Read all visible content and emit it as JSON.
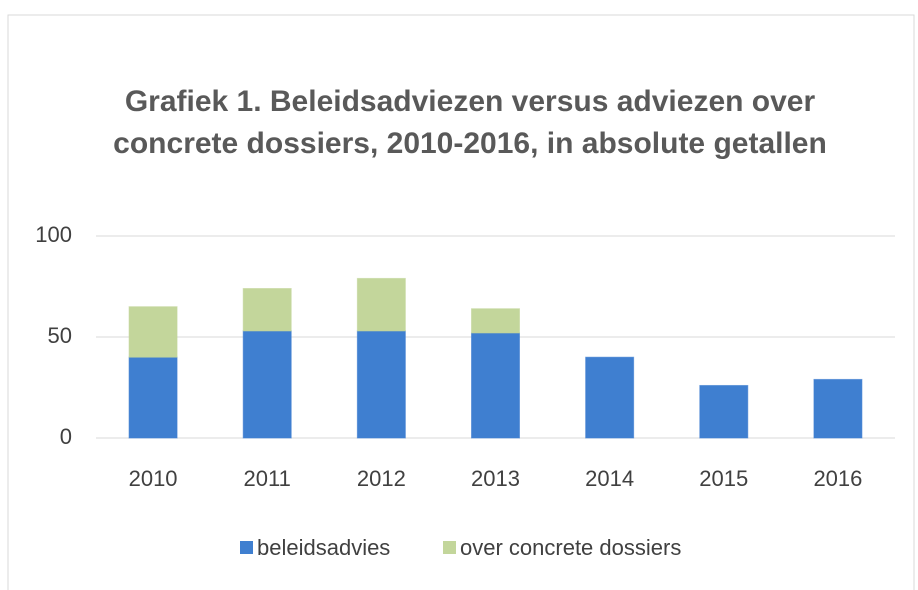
{
  "chart_data": {
    "type": "bar",
    "stacked": true,
    "title": [
      "Grafiek 1. Beleidsadviezen versus adviezen over",
      "concrete dossiers, 2010-2016,  in absolute getallen"
    ],
    "categories": [
      "2010",
      "2011",
      "2012",
      "2013",
      "2014",
      "2015",
      "2016"
    ],
    "series": [
      {
        "name": "beleidsadvies",
        "color": "#3f7fd0",
        "values": [
          40,
          53,
          53,
          52,
          40,
          26,
          29
        ]
      },
      {
        "name": "over concrete dossiers",
        "color": "#c3d69b",
        "values": [
          25,
          21,
          26,
          12,
          0,
          0,
          0
        ]
      }
    ],
    "ylim": [
      0,
      100
    ],
    "yticks": [
      0,
      50,
      100
    ],
    "grid": true,
    "legend": "bottom"
  }
}
